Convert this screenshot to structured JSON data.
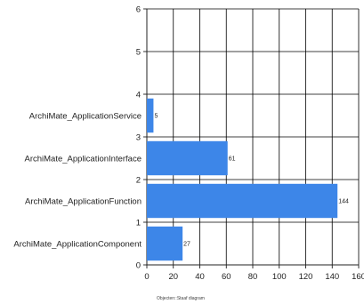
{
  "caption": "Objecten::Staaf diagram",
  "colors": {
    "bar": "#3d86e8",
    "grid": "#000000",
    "axis": "#222222"
  },
  "chart_data": {
    "type": "bar",
    "orientation": "horizontal",
    "categories": [
      "ArchiMate_ApplicationComponent",
      "ArchiMate_ApplicationFunction",
      "ArchiMate_ApplicationInterface",
      "ArchiMate_ApplicationService"
    ],
    "values": [
      27,
      144,
      61,
      5
    ],
    "data_labels": [
      "27",
      "144",
      "61",
      "5"
    ],
    "x_ticks": [
      "0",
      "20",
      "40",
      "60",
      "80",
      "100",
      "120",
      "140",
      "160"
    ],
    "y_ticks": [
      "0",
      "1",
      "2",
      "3",
      "4",
      "5",
      "6"
    ],
    "xlim": [
      0,
      160
    ],
    "ylim": [
      0,
      6
    ],
    "grid": true
  }
}
